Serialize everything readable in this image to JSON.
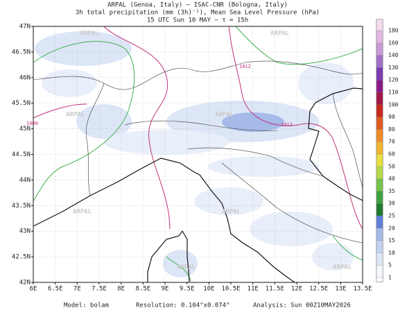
{
  "header": {
    "lines": [
      "ARPAL (Genoa, Italy)  —  ISAC-CNR (Bologna, Italy)",
      "3h total precipitation (mm (3h)⁻¹), Mean Sea Level Pressure (hPa)",
      "15 UTC Sun 10 MAY  —  τ = 15h"
    ]
  },
  "map": {
    "lon_labels": [
      "6E",
      "6.5E",
      "7E",
      "7.5E",
      "8E",
      "8.5E",
      "9E",
      "9.5E",
      "10E",
      "10.5E",
      "11E",
      "11.5E",
      "12E",
      "12.5E",
      "13E",
      "13.5E"
    ],
    "lat_labels": [
      "47N",
      "46.5N",
      "46N",
      "45.5N",
      "45N",
      "44.5N",
      "44N",
      "43.5N",
      "43N",
      "42.5N",
      "42N"
    ],
    "contour_labels": [
      "1012",
      "1008",
      "1012"
    ],
    "watermark": "ARPAL"
  },
  "colorbar": [
    {
      "label": "1",
      "color": "#f4f6fc"
    },
    {
      "label": "5",
      "color": "#dde6f7"
    },
    {
      "label": "10",
      "color": "#c3d2f1"
    },
    {
      "label": "15",
      "color": "#a6bbea"
    },
    {
      "label": "20",
      "color": "#5d7fd8"
    },
    {
      "label": "25",
      "color": "#1e7a2e"
    },
    {
      "label": "30",
      "color": "#3ea040"
    },
    {
      "label": "35",
      "color": "#76c24a"
    },
    {
      "label": "40",
      "color": "#b5d84a"
    },
    {
      "label": "50",
      "color": "#e8e040"
    },
    {
      "label": "60",
      "color": "#f2b530"
    },
    {
      "label": "70",
      "color": "#ee8a28"
    },
    {
      "label": "80",
      "color": "#e05a20"
    },
    {
      "label": "90",
      "color": "#c8281e"
    },
    {
      "label": "100",
      "color": "#a01848"
    },
    {
      "label": "110",
      "color": "#8a1a8a"
    },
    {
      "label": "120",
      "color": "#7a3ab0"
    },
    {
      "label": "130",
      "color": "#a070c8"
    },
    {
      "label": "140",
      "color": "#c89ad8"
    },
    {
      "label": "160",
      "color": "#e0b8e0"
    },
    {
      "label": "180",
      "color": "#f2dcec"
    }
  ],
  "footer": {
    "model": "Model: bolam",
    "resolution": "Resolution: 0.104°x0.074°",
    "analysis": "Analysis: Sun 00Z10MAY2026"
  }
}
